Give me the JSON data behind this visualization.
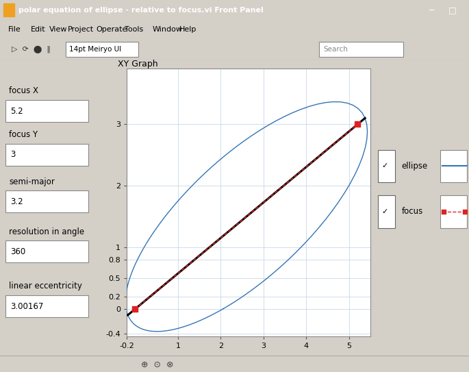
{
  "title": "XY Graph",
  "window_title": "polar equation of ellipse - relative to focus.vi Front Panel",
  "focus_x": 5.2,
  "focus_y": 3,
  "semi_major": 3.2,
  "linear_eccentricity": 3.00167,
  "resolution": 360,
  "xlim": [
    -0.2,
    5.5
  ],
  "ylim": [
    -0.45,
    3.9
  ],
  "xtick_vals": [
    -0.2,
    1,
    2,
    3,
    4,
    5
  ],
  "xtick_labels": [
    "-0.2",
    "1",
    "2",
    "3",
    "4",
    "5"
  ],
  "ytick_vals": [
    -0.4,
    0,
    0.2,
    0.5,
    0.8,
    1,
    1,
    2,
    2,
    2,
    2,
    3,
    3,
    3
  ],
  "ytick_labels": [
    "-0.4",
    "0",
    "0.2",
    "0.5",
    "0.8",
    "1",
    "1",
    "2",
    "2",
    "2",
    "2",
    "3",
    "3",
    "3"
  ],
  "ellipse_color": "#3575b5",
  "major_axis_color": "#000000",
  "focus_line_color": "#ee2222",
  "focus_marker_color": "#dd2222",
  "win_bg": "#c0c0c0",
  "panel_bg": "#d4d0c8",
  "plot_bg": "#ffffff",
  "plot_border": "#888888",
  "grid_color": "#c8d8e8",
  "label_ellipse": "ellipse",
  "label_focus": "focus",
  "ctrl_labels": [
    "focus X",
    "focus Y",
    "semi-major",
    "resolution in angle",
    "linear eccentricity"
  ],
  "ctrl_values": [
    "5.2",
    "3",
    "3.2",
    "360",
    "3.00167"
  ],
  "title_bar_bg": "#0a246a",
  "title_bar_fg": "#ffffff",
  "menu_items": [
    "File",
    "Edit",
    "View",
    "Project",
    "Operate",
    "Tools",
    "Window",
    "Help"
  ]
}
